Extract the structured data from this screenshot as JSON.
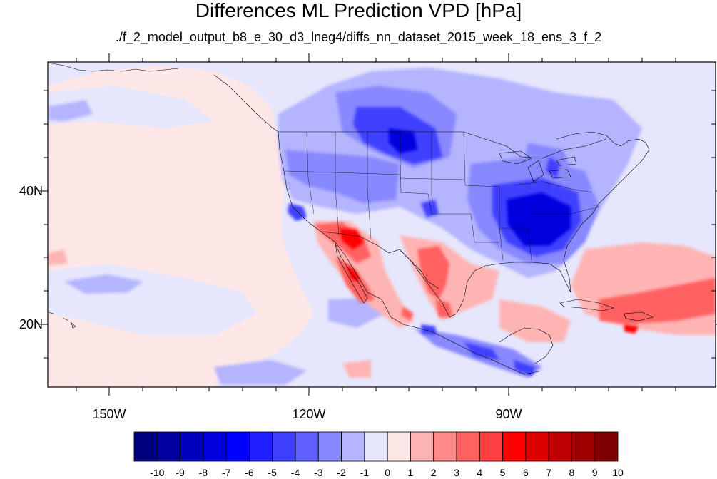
{
  "title": "Differences ML Prediction VPD [hPa]",
  "subtitle": "./f_2_model_output_b8_e_30_d3_lneg4/diffs_nn_dataset_2015_week_18_ens_3_f_2",
  "map": {
    "region": "North America / Eastern Pacific",
    "projection": "cylindrical equidistant",
    "lon_range": [
      -160,
      -62
    ],
    "lat_range": [
      10,
      59
    ],
    "lon_ticks": [
      "150W",
      "120W",
      "90W"
    ],
    "lat_ticks": [
      "40N",
      "20N"
    ],
    "field": "VPD difference (ML prediction minus reference)",
    "features": [
      {
        "name": "Pacific Northwest to Great Lakes",
        "sign": "negative",
        "magnitude": "moderate to strong"
      },
      {
        "name": "Southeastern United States",
        "sign": "negative",
        "magnitude": "strong"
      },
      {
        "name": "Baja California / Southwest US",
        "sign": "positive",
        "magnitude": "strong"
      },
      {
        "name": "Sierra Madre Occidental",
        "sign": "positive",
        "magnitude": "moderate"
      },
      {
        "name": "Northern Mexico plateau",
        "sign": "positive",
        "magnitude": "moderate"
      },
      {
        "name": "Southern Mexico Pacific coast",
        "sign": "negative",
        "magnitude": "moderate"
      },
      {
        "name": "Atlantic east of Florida",
        "sign": "positive",
        "magnitude": "moderate"
      },
      {
        "name": "Eastern Pacific Ocean",
        "sign": "near zero",
        "magnitude": "weak"
      }
    ]
  },
  "colorbar": {
    "levels": [
      "-10",
      "-9",
      "-8",
      "-7",
      "-6",
      "-5",
      "-4",
      "-3",
      "-2",
      "-1",
      "0",
      "1",
      "2",
      "3",
      "4",
      "5",
      "6",
      "7",
      "8",
      "9",
      "10"
    ],
    "colors": [
      "#00007f",
      "#00009f",
      "#0000bf",
      "#0000df",
      "#0000ff",
      "#1f1fff",
      "#3f3fff",
      "#6060ff",
      "#8888ff",
      "#b4b4ff",
      "#e6e6fc",
      "#fde6e6",
      "#ffb4b4",
      "#ff8888",
      "#ff6060",
      "#ff3f3f",
      "#ff0000",
      "#df0000",
      "#bf0000",
      "#9f0000",
      "#7f0000"
    ]
  }
}
